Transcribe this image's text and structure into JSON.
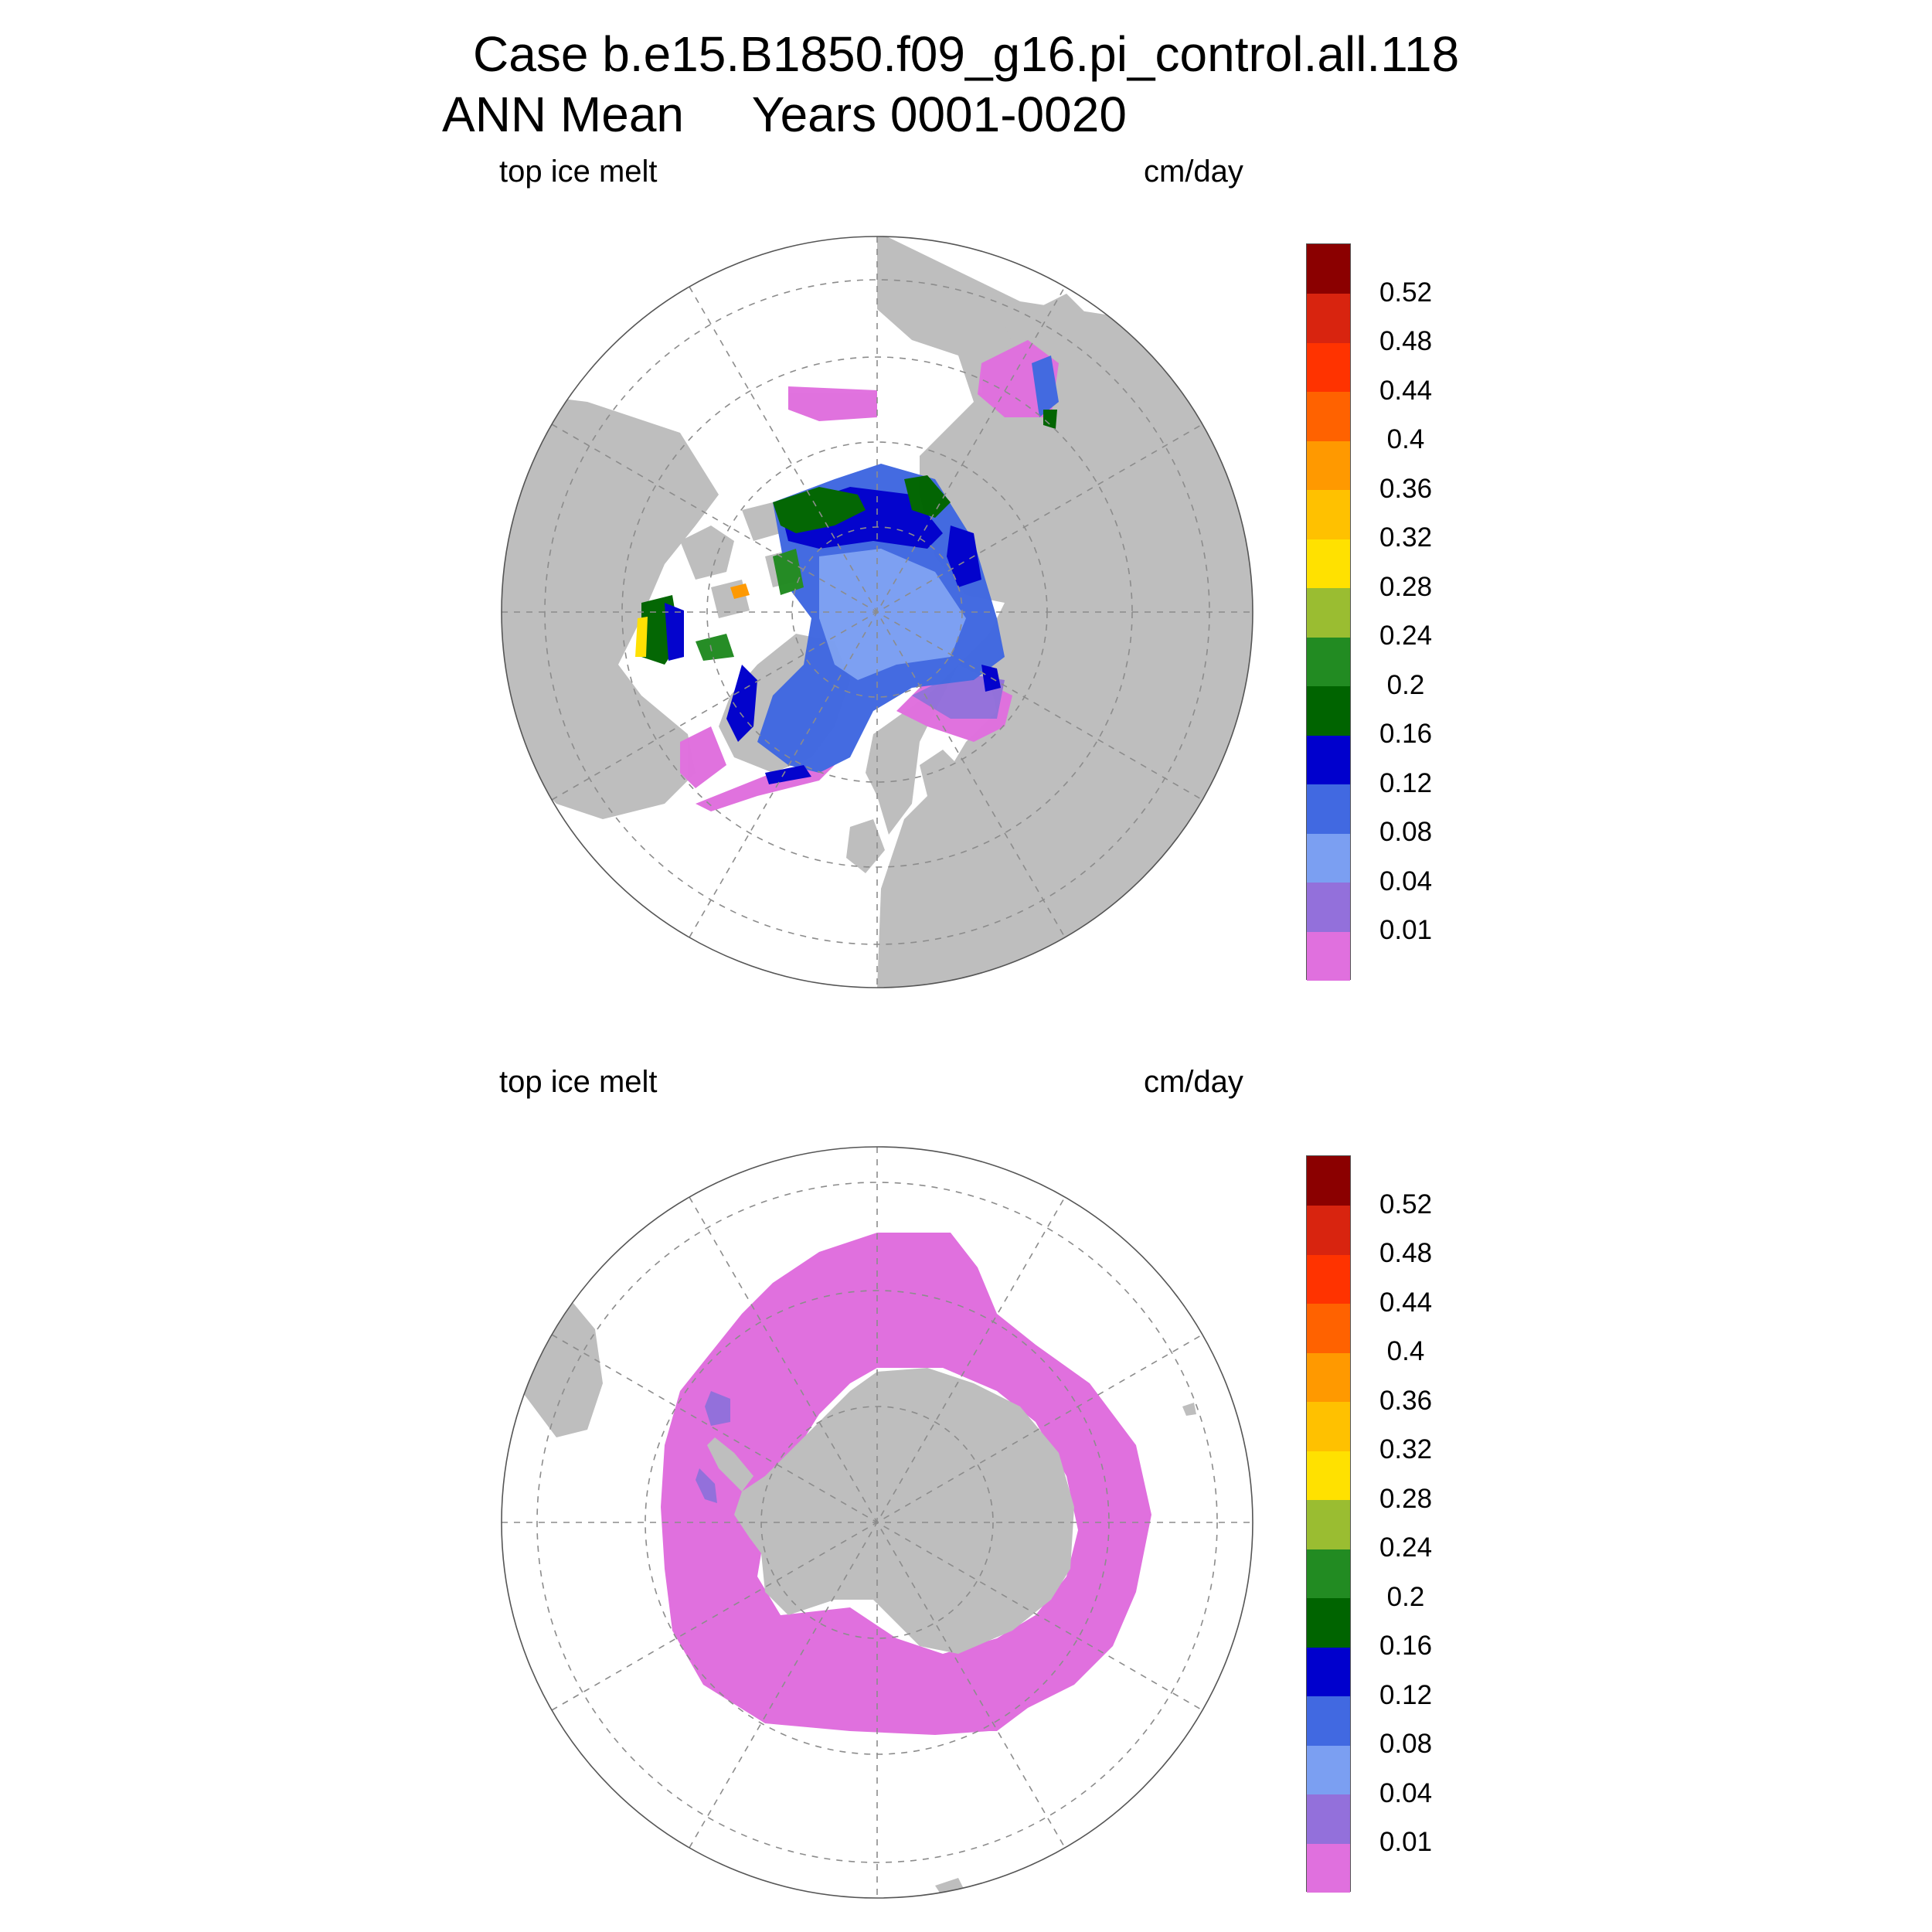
{
  "header": {
    "line1": "Case b.e15.B1850.f09_g16.pi_control.all.118",
    "line2": "ANN Mean     Years 0001-0020"
  },
  "colors": {
    "land": "#bebebe",
    "ocean": "#ffffff",
    "grid": "#8c8c8c",
    "levels": [
      "#e070de",
      "#9370db",
      "#7b9ff2",
      "#4169e1",
      "#0000cd",
      "#006400",
      "#228b22",
      "#9abd31",
      "#ffe100",
      "#ffc100",
      "#ff9900",
      "#ff6200",
      "#ff3300",
      "#d8240f",
      "#8b0000"
    ]
  },
  "colorbar": {
    "tick_labels": [
      "0.01",
      "0.04",
      "0.08",
      "0.12",
      "0.16",
      "0.2",
      "0.24",
      "0.28",
      "0.32",
      "0.36",
      "0.4",
      "0.44",
      "0.48",
      "0.52"
    ]
  },
  "panels": [
    {
      "id": "north",
      "hemisphere": "Northern Hemisphere polar stereographic",
      "left_label": "top ice melt",
      "right_label": "cm/day"
    },
    {
      "id": "south",
      "hemisphere": "Southern Hemisphere polar stereographic",
      "left_label": "top ice melt",
      "right_label": "cm/day"
    }
  ]
}
